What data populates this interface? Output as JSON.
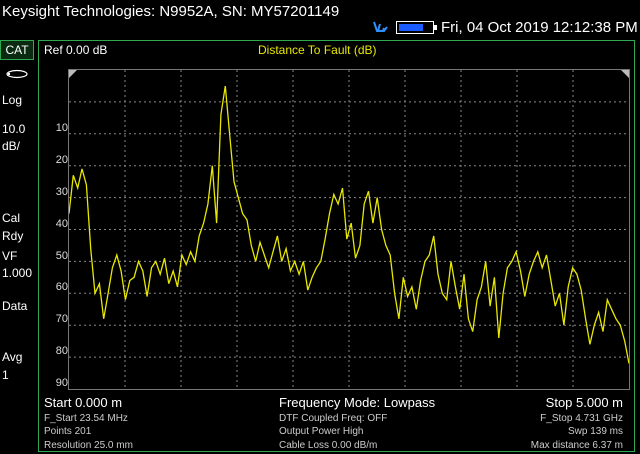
{
  "header": {
    "title": "Keysight Technologies: N9952A, SN: MY57201149",
    "datetime": "Fri, 04 Oct 2019 12:12:38 PM",
    "battery_level": 0.8,
    "battery_color": "#1a5cff",
    "icons": [
      "usb-icon",
      "battery-icon"
    ]
  },
  "sidebar": {
    "mode_tab": "CAT",
    "items": [
      "Log",
      "10.0",
      "dB/",
      "Cal",
      "Rdy",
      "VF",
      "1.000",
      "Data",
      "Avg",
      "1"
    ]
  },
  "trace": {
    "ref_label": "Ref 0.00 dB",
    "title": "Distance To Fault (dB)",
    "color": "#e8e800"
  },
  "footer": {
    "start": "Start 0.000 m",
    "freq_mode": "Frequency Mode: Lowpass",
    "stop": "Stop 5.000 m",
    "f_start": "F_Start 23.54 MHz",
    "points": "Points 201",
    "resolution": "Resolution 25.0 mm",
    "dtf_coupled": "DTF Coupled Freq:  OFF",
    "output_power": "Output Power High",
    "cable_loss": "Cable Loss 0.00  dB/m",
    "f_stop": "F_Stop 4.731 GHz",
    "swp": "Swp 139 ms",
    "max_distance": "Max distance 6.37  m"
  },
  "chart_data": {
    "type": "line",
    "title": "Distance To Fault (dB)",
    "xlabel": "",
    "ylabel": "",
    "xlim": [
      0,
      5
    ],
    "ylim": [
      -100,
      0
    ],
    "y_tick_labels": [
      "10",
      "20",
      "30",
      "40",
      "50",
      "60",
      "70",
      "80",
      "90"
    ],
    "grid": true,
    "series": [
      {
        "values": [
          -45,
          -33,
          -37,
          -31,
          -36,
          -56,
          -70,
          -67,
          -78,
          -70,
          -62,
          -58,
          -63,
          -72,
          -66,
          -65,
          -60,
          -63,
          -71,
          -62,
          -60,
          -64,
          -59,
          -67,
          -63,
          -68,
          -58,
          -61,
          -57,
          -60,
          -52,
          -48,
          -42,
          -30,
          -48,
          -14,
          -5,
          -20,
          -35,
          -40,
          -45,
          -47,
          -55,
          -60,
          -54,
          -58,
          -62,
          -57,
          -52,
          -60,
          -56,
          -63,
          -60,
          -64,
          -60,
          -69,
          -65,
          -62,
          -60,
          -53,
          -45,
          -39,
          -42,
          -37,
          -53,
          -48,
          -59,
          -55,
          -42,
          -38,
          -48,
          -40,
          -50,
          -55,
          -58,
          -70,
          -78,
          -65,
          -71,
          -68,
          -75,
          -66,
          -60,
          -58,
          -52,
          -64,
          -70,
          -72,
          -60,
          -68,
          -75,
          -64,
          -78,
          -82,
          -72,
          -68,
          -60,
          -74,
          -65,
          -84,
          -70,
          -62,
          -60,
          -57,
          -63,
          -71,
          -64,
          -60,
          -57,
          -62,
          -58,
          -66,
          -74,
          -70,
          -80,
          -68,
          -62,
          -64,
          -69,
          -78,
          -86,
          -80,
          -76,
          -82,
          -72,
          -75,
          -78,
          -80,
          -85,
          -92
        ]
      }
    ]
  }
}
